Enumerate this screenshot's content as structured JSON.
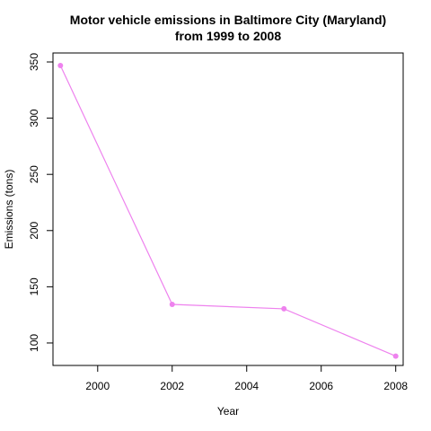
{
  "chart_data": {
    "type": "line",
    "title": "Motor vehicle emissions in Baltimore City (Maryland)",
    "subtitle": "from 1999 to 2008",
    "xlabel": "Year",
    "ylabel": "Emissions (tons)",
    "x_ticks": [
      "2000",
      "2002",
      "2004",
      "2006",
      "2008"
    ],
    "y_ticks": [
      "100",
      "150",
      "200",
      "250",
      "300",
      "350"
    ],
    "xlim": [
      1998.8,
      2008.2
    ],
    "ylim": [
      80,
      358
    ],
    "grid": false,
    "legend": "none",
    "color": "#EE82EE",
    "series": [
      {
        "x": [
          1999,
          2002,
          2005,
          2008
        ],
        "y": [
          346.8,
          134.3,
          130.4,
          88.3
        ]
      }
    ]
  }
}
